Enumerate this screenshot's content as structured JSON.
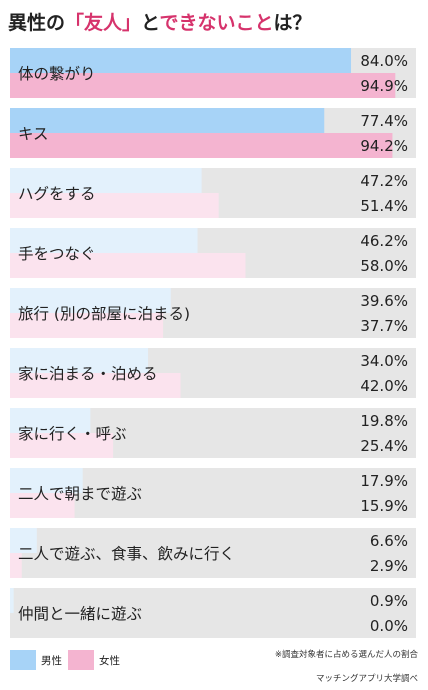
{
  "title": {
    "prefix": "異性の",
    "accent1": "「友人」",
    "middle": "と",
    "accent2": "できないこと",
    "suffix": "は？"
  },
  "colors": {
    "male": "#a7d3f7",
    "male_light": "#e3f1fc",
    "female": "#f4b4d0",
    "female_light": "#fbe3ee",
    "track": "#e6e6e6",
    "title_accent": "#d6336c"
  },
  "legend": [
    {
      "label": "男性",
      "color": "#a7d3f7"
    },
    {
      "label": "女性",
      "color": "#f4b4d0"
    }
  ],
  "note": "※調査対象者に占める選んだ人の割合",
  "source": "マッチングアプリ大学調べ",
  "chart_data": {
    "type": "bar",
    "orientation": "horizontal",
    "unit": "%",
    "xlim": [
      0,
      100
    ],
    "categories": [
      "体の繋がり",
      "キス",
      "ハグをする",
      "手をつなぐ",
      "旅行 (別の部屋に泊まる)",
      "家に泊まる・泊める",
      "家に行く・呼ぶ",
      "二人で朝まで遊ぶ",
      "二人で遊ぶ、食事、飲みに行く",
      "仲間と一緒に遊ぶ"
    ],
    "series": [
      {
        "name": "男性",
        "values": [
          84.0,
          77.4,
          47.2,
          46.2,
          39.6,
          34.0,
          19.8,
          17.9,
          6.6,
          0.9
        ],
        "labels": [
          "84.0%",
          "77.4%",
          "47.2%",
          "46.2%",
          "39.6%",
          "34.0%",
          "19.8%",
          "17.9%",
          "6.6%",
          "0.9%"
        ]
      },
      {
        "name": "女性",
        "values": [
          94.9,
          94.2,
          51.4,
          58.0,
          37.7,
          42.0,
          25.4,
          15.9,
          2.9,
          0.0
        ],
        "labels": [
          "94.9%",
          "94.2%",
          "51.4%",
          "58.0%",
          "37.7%",
          "42.0%",
          "25.4%",
          "15.9%",
          "2.9%",
          "0.0%"
        ]
      }
    ],
    "highlighted_count": 2
  }
}
